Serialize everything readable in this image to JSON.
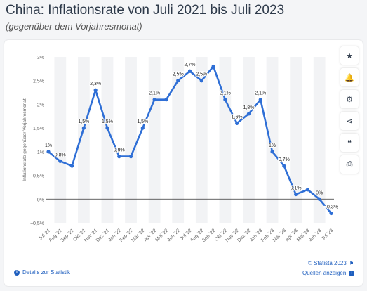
{
  "header": {
    "title": "China: Inflationsrate von Juli 2021 bis Juli 2023",
    "subtitle": "(gegenüber dem Vorjahresmonat)"
  },
  "toolbar": {
    "buttons": [
      {
        "name": "star-icon",
        "glyph": "★"
      },
      {
        "name": "bell-icon",
        "glyph": "🔔"
      },
      {
        "name": "gear-icon",
        "glyph": "⚙"
      },
      {
        "name": "share-icon",
        "glyph": "⋖"
      },
      {
        "name": "quote-icon",
        "glyph": "❝"
      },
      {
        "name": "print-icon",
        "glyph": "⎙"
      }
    ]
  },
  "footer": {
    "details_label": "Details zur Statistik",
    "copyright": "© Statista 2023",
    "sources_label": "Quellen anzeigen"
  },
  "colors": {
    "line": "#2f6fd6",
    "link": "#1f5fbf",
    "band": "#f2f3f5"
  },
  "chart_data": {
    "type": "line",
    "ylabel": "Inflationsrate gegenüber Vorjahresmonat",
    "ylim": [
      -0.5,
      3
    ],
    "yticks": [
      {
        "v": 3,
        "label": "3%"
      },
      {
        "v": 2.5,
        "label": "2,5%"
      },
      {
        "v": 2,
        "label": "2%"
      },
      {
        "v": 1.5,
        "label": "1,5%"
      },
      {
        "v": 1,
        "label": "1%"
      },
      {
        "v": 0.5,
        "label": "0,5%"
      },
      {
        "v": 0,
        "label": "0%"
      },
      {
        "v": -0.5,
        "label": "−0,5%"
      }
    ],
    "categories": [
      "Jul '21",
      "Aug '21",
      "Sep '21",
      "Okt '21",
      "Nov '21",
      "Dez '21",
      "Jan '22",
      "Feb '22",
      "Mär '22",
      "Apr '22",
      "Mai '22",
      "Jun '22",
      "Jul '22",
      "Aug '22",
      "Sep '22",
      "Okt '22",
      "Nov '22",
      "Dez '22",
      "Jan '23",
      "Feb '23",
      "Mär '23",
      "Apr '23",
      "Mai '23",
      "Jun '23",
      "Jul '23"
    ],
    "values": [
      1,
      0.8,
      0.7,
      1.5,
      2.3,
      1.5,
      0.9,
      0.9,
      1.5,
      2.1,
      2.1,
      2.5,
      2.7,
      2.5,
      2.8,
      2.1,
      1.6,
      1.8,
      2.1,
      1,
      0.7,
      0.1,
      0.2,
      0,
      -0.3
    ],
    "data_labels": [
      "1%",
      "0,8%",
      "",
      "1,5%",
      "2,3%",
      "1,5%",
      "0,9%",
      "",
      "1,5%",
      "2,1%",
      "",
      "2,5%",
      "2,7%",
      "2,5%",
      "",
      "2,1%",
      "1,6%",
      "1,8%",
      "2,1%",
      "1%",
      "0,7%",
      "0,1%",
      "",
      "0%",
      "−0,3%"
    ],
    "grid": false,
    "legend": "none"
  }
}
